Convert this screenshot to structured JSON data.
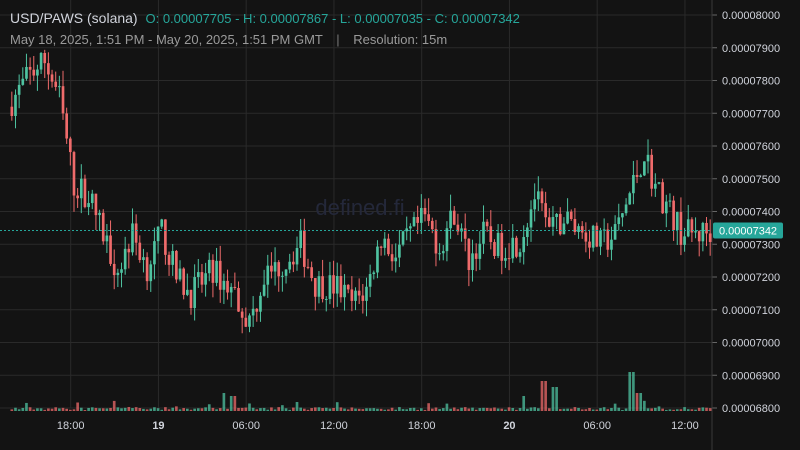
{
  "header": {
    "pair": "USD/PAWS (solana)",
    "ohlc": "O: 0.00007705 - H: 0.00007867 - L: 0.00007035 - C: 0.00007342",
    "range": "May 18, 2025, 1:51 PM - May 20, 2025, 1:51 PM GMT",
    "separator": "|",
    "resolution": "Resolution: 15m"
  },
  "watermark": "defined.fi",
  "colors": {
    "up": "#4fc3a1",
    "down": "#ef6b6b",
    "grid": "#2a2a2a",
    "price_line": "#26a69a",
    "background": "#131313"
  },
  "chart_data": {
    "type": "candlestick",
    "y_ticks": [
      "0.00008000",
      "0.00007900",
      "0.00007800",
      "0.00007700",
      "0.00007600",
      "0.00007500",
      "0.00007400",
      "0.00007300",
      "0.00007200",
      "0.00007100",
      "0.00007000",
      "0.00006900",
      "0.00006800"
    ],
    "ylim": [
      6.8e-05,
      8e-05
    ],
    "x_ticks": [
      {
        "label": "18:00",
        "hour": 4.15,
        "bold": false
      },
      {
        "label": "19",
        "hour": 10.15,
        "bold": true
      },
      {
        "label": "06:00",
        "hour": 16.15,
        "bold": false
      },
      {
        "label": "12:00",
        "hour": 22.15,
        "bold": false
      },
      {
        "label": "18:00",
        "hour": 28.15,
        "bold": false
      },
      {
        "label": "20",
        "hour": 34.15,
        "bold": true
      },
      {
        "label": "06:00",
        "hour": 40.15,
        "bold": false
      },
      {
        "label": "12:00",
        "hour": 46.15,
        "bold": false
      }
    ],
    "xlim_hours": [
      0,
      48
    ],
    "last_price": "0.00007342",
    "last_price_value": 7.342e-05,
    "resolution_minutes": 15,
    "close_path": [
      [
        0,
        7.72e-05
      ],
      [
        1.5,
        7.82e-05
      ],
      [
        2.5,
        7.86e-05
      ],
      [
        3.5,
        7.75e-05
      ],
      [
        4.5,
        7.48e-05
      ],
      [
        5.5,
        7.45e-05
      ],
      [
        6.5,
        7.33e-05
      ],
      [
        7.5,
        7.22e-05
      ],
      [
        8.5,
        7.33e-05
      ],
      [
        9.5,
        7.23e-05
      ],
      [
        10.5,
        7.34e-05
      ],
      [
        11.5,
        7.2e-05
      ],
      [
        12.5,
        7.15e-05
      ],
      [
        14.0,
        7.22e-05
      ],
      [
        15.5,
        7.15e-05
      ],
      [
        16.5,
        7.06e-05
      ],
      [
        17.5,
        7.2e-05
      ],
      [
        19.0,
        7.25e-05
      ],
      [
        20.0,
        7.3e-05
      ],
      [
        21.0,
        7.18e-05
      ],
      [
        22.5,
        7.17e-05
      ],
      [
        23.5,
        7.12e-05
      ],
      [
        24.5,
        7.16e-05
      ],
      [
        25.5,
        7.32e-05
      ],
      [
        26.5,
        7.26e-05
      ],
      [
        27.5,
        7.33e-05
      ],
      [
        28.5,
        7.38e-05
      ],
      [
        29.5,
        7.29e-05
      ],
      [
        30.5,
        7.4e-05
      ],
      [
        31.5,
        7.25e-05
      ],
      [
        32.5,
        7.33e-05
      ],
      [
        33.5,
        7.29e-05
      ],
      [
        35.0,
        7.31e-05
      ],
      [
        36.0,
        7.45e-05
      ],
      [
        37.0,
        7.33e-05
      ],
      [
        38.0,
        7.38e-05
      ],
      [
        39.0,
        7.35e-05
      ],
      [
        40.5,
        7.3e-05
      ],
      [
        41.5,
        7.33e-05
      ],
      [
        42.8,
        7.49e-05
      ],
      [
        43.5,
        7.58e-05
      ],
      [
        44.2,
        7.48e-05
      ],
      [
        45.0,
        7.42e-05
      ],
      [
        46.0,
        7.34e-05
      ],
      [
        47.0,
        7.33e-05
      ],
      [
        48.0,
        7.34e-05
      ]
    ],
    "volume_spikes": [
      [
        14.5,
        3
      ],
      [
        15.2,
        2.5
      ],
      [
        35.0,
        2.5
      ],
      [
        36.3,
        5
      ],
      [
        37.2,
        4
      ],
      [
        42.3,
        6.5
      ],
      [
        42.8,
        3
      ]
    ]
  }
}
